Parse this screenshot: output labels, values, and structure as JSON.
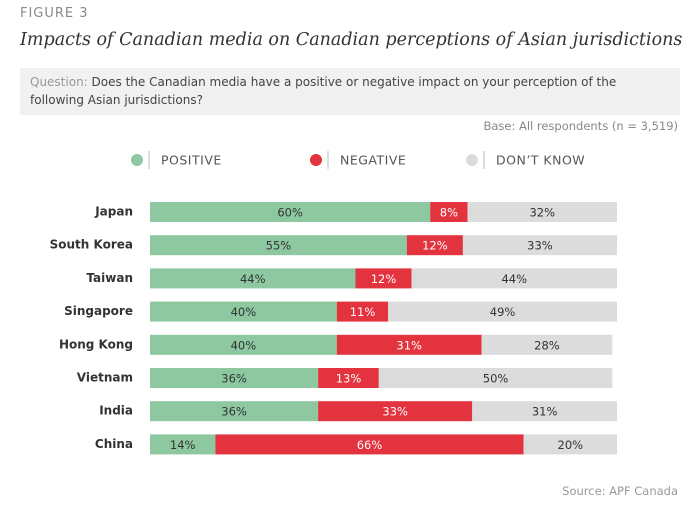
{
  "chart_data": {
    "type": "stacked-bar-horizontal",
    "figure_label": "FIGURE 3",
    "title": "Impacts of Canadian media on Canadian perceptions of Asian jurisdictions",
    "question_label": "Question:",
    "question": "Does the Canadian media have a positive or negative impact on your perception of the following Asian jurisdictions?",
    "base_note": "Base: All respondents (n = 3,519)",
    "source": "Source: APF Canada",
    "categories": [
      "Japan",
      "South Korea",
      "Taiwan",
      "Singapore",
      "Hong Kong",
      "Vietnam",
      "India",
      "China"
    ],
    "series": [
      {
        "name": "POSITIVE",
        "color": "#8dc8a0",
        "values": [
          60,
          55,
          44,
          40,
          40,
          36,
          36,
          14
        ],
        "value_labels": [
          "60%",
          "55%",
          "44%",
          "40%",
          "40%",
          "36%",
          "36%",
          "14%"
        ]
      },
      {
        "name": "NEGATIVE",
        "color": "#e2333e",
        "values": [
          8,
          12,
          12,
          11,
          31,
          13,
          33,
          66
        ],
        "value_labels": [
          "8%",
          "12%",
          "12%",
          "11%",
          "31%",
          "13%",
          "33%",
          "66%"
        ]
      },
      {
        "name": "DON’T KNOW",
        "color": "#dcdcdc",
        "values": [
          32,
          33,
          44,
          49,
          28,
          50,
          31,
          20
        ],
        "value_labels": [
          "32%",
          "33%",
          "44%",
          "49%",
          "28%",
          "50%",
          "31%",
          "20%"
        ]
      }
    ]
  }
}
